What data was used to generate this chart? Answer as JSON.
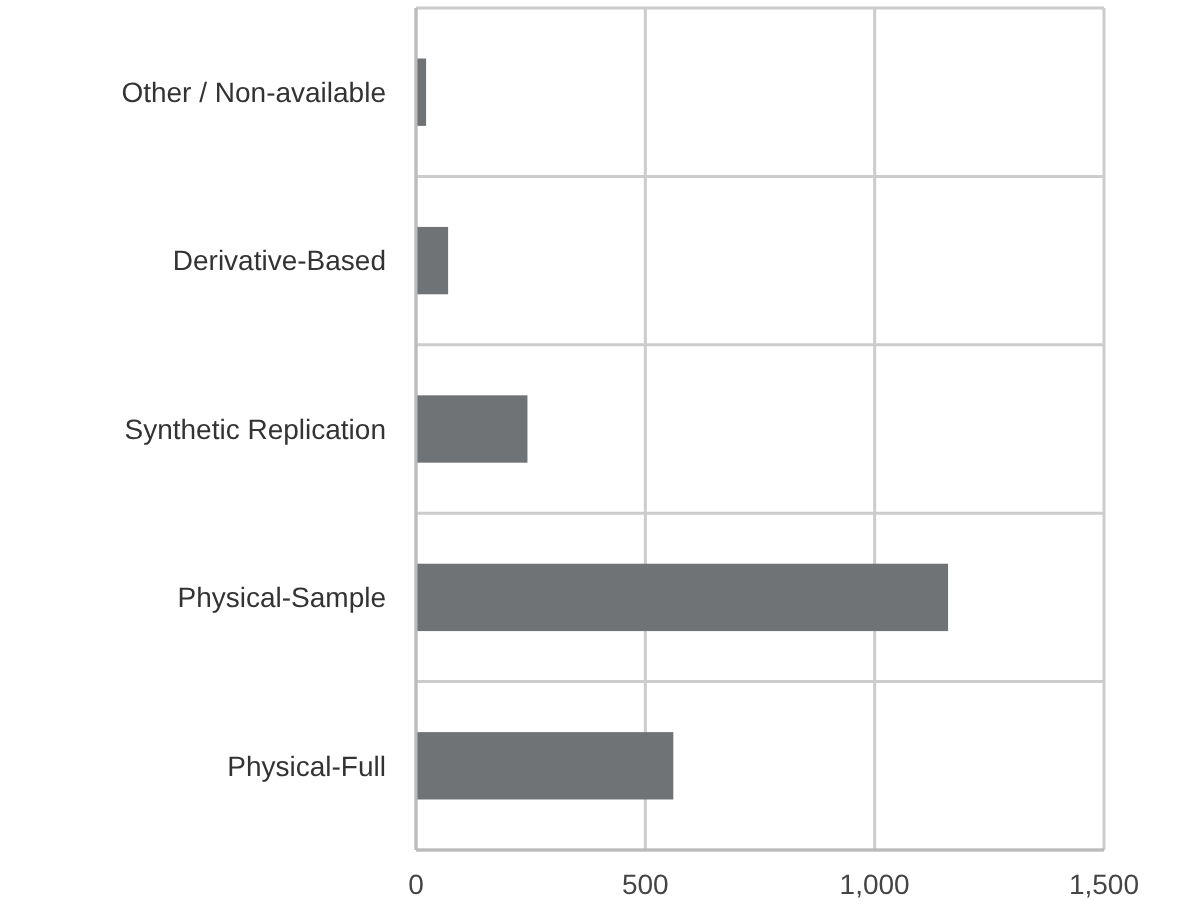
{
  "chart_data": {
    "type": "bar",
    "orientation": "horizontal",
    "categories": [
      "Other / Non-available",
      "Derivative-Based",
      "Synthetic Replication",
      "Physical-Sample",
      "Physical-Full"
    ],
    "values": [
      22,
      70,
      243,
      1160,
      561
    ],
    "color": "#707376",
    "xlim": [
      0,
      1500
    ],
    "xticks": [
      0,
      {
        "value": 500,
        "label": "500"
      },
      {
        "value": 1000,
        "label": "1,000"
      },
      {
        "value": 1500,
        "label": "1,500"
      }
    ],
    "grid": true
  }
}
